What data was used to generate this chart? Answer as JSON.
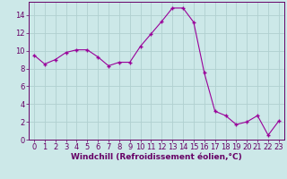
{
  "x": [
    0,
    1,
    2,
    3,
    4,
    5,
    6,
    7,
    8,
    9,
    10,
    11,
    12,
    13,
    14,
    15,
    16,
    17,
    18,
    19,
    20,
    21,
    22,
    23
  ],
  "y": [
    9.5,
    8.5,
    9.0,
    9.8,
    10.1,
    10.1,
    9.3,
    8.3,
    8.7,
    8.7,
    10.5,
    11.9,
    13.3,
    14.8,
    14.8,
    13.2,
    7.5,
    3.2,
    2.7,
    1.7,
    2.0,
    2.7,
    0.5,
    2.1
  ],
  "line_color": "#990099",
  "marker": "+",
  "marker_size": 3,
  "marker_linewidth": 1.0,
  "line_width": 0.8,
  "bg_color": "#cce8e8",
  "grid_color": "#b0d0d0",
  "xlabel": "Windchill (Refroidissement éolien,°C)",
  "xlabel_color": "#660066",
  "xlabel_fontsize": 6.5,
  "tick_fontsize": 6.0,
  "tick_color": "#660066",
  "axis_color": "#660066",
  "xlim": [
    -0.5,
    23.5
  ],
  "ylim": [
    0,
    15.5
  ],
  "yticks": [
    0,
    2,
    4,
    6,
    8,
    10,
    12,
    14
  ],
  "xticks": [
    0,
    1,
    2,
    3,
    4,
    5,
    6,
    7,
    8,
    9,
    10,
    11,
    12,
    13,
    14,
    15,
    16,
    17,
    18,
    19,
    20,
    21,
    22,
    23
  ]
}
